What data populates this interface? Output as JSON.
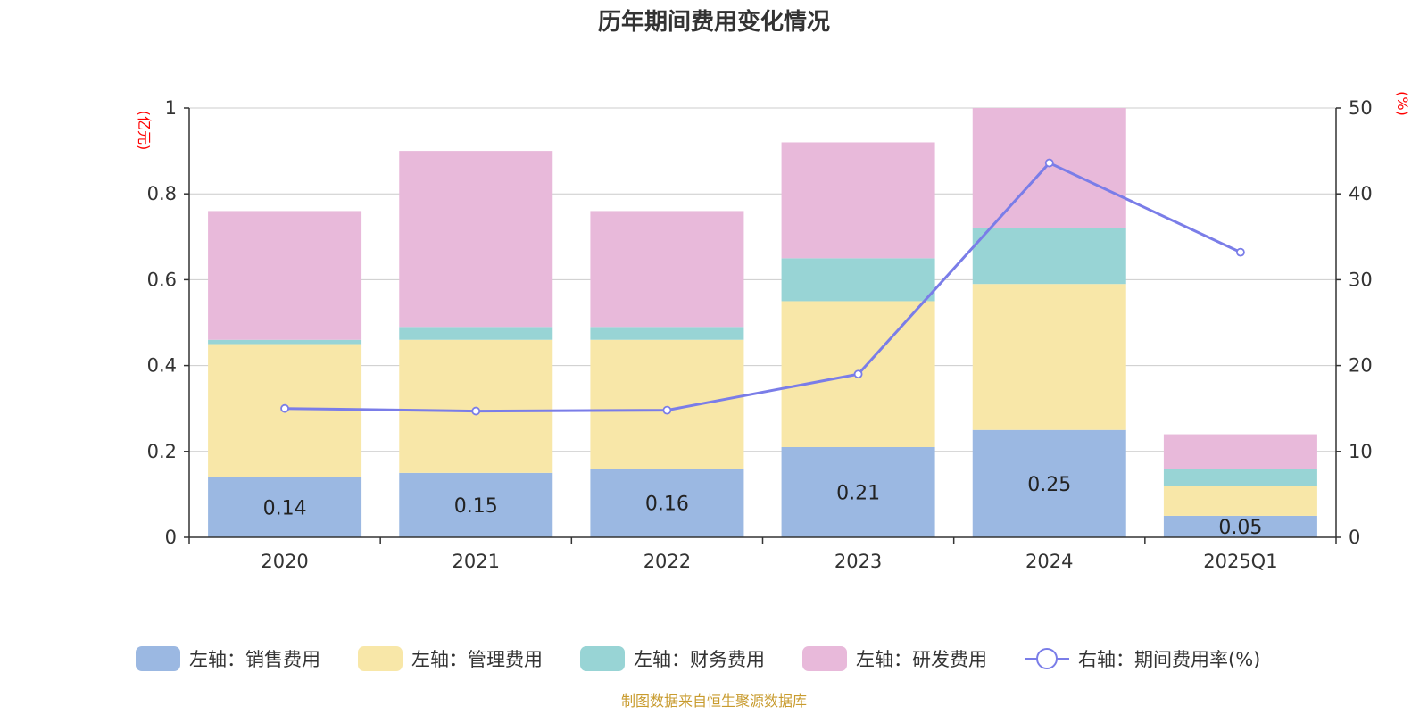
{
  "chart_data": {
    "type": "bar",
    "stacked": true,
    "title": "历年期间费用变化情况",
    "categories": [
      "2020",
      "2021",
      "2022",
      "2023",
      "2024",
      "2025Q1"
    ],
    "left_axis_unit": "(亿元)",
    "right_axis_unit": "(%)",
    "ylim_left": [
      0,
      1
    ],
    "yticks_left": [
      "0",
      "0.2",
      "0.4",
      "0.6",
      "0.8",
      "1"
    ],
    "ylim_right": [
      0,
      50
    ],
    "yticks_right": [
      "0",
      "10",
      "20",
      "30",
      "40",
      "50"
    ],
    "grid": true,
    "legend_position": "bottom",
    "series": [
      {
        "name": "左轴：销售费用",
        "axis": "left",
        "color": "#9bb8e2",
        "values": [
          0.14,
          0.15,
          0.16,
          0.21,
          0.25,
          0.05
        ],
        "labels": [
          "0.14",
          "0.15",
          "0.16",
          "0.21",
          "0.25",
          "0.05"
        ]
      },
      {
        "name": "左轴：管理费用",
        "axis": "left",
        "color": "#f8e7a8",
        "values": [
          0.31,
          0.31,
          0.3,
          0.34,
          0.34,
          0.07
        ]
      },
      {
        "name": "左轴：财务费用",
        "axis": "left",
        "color": "#98d4d5",
        "values": [
          0.01,
          0.03,
          0.03,
          0.1,
          0.13,
          0.04
        ]
      },
      {
        "name": "左轴：研发费用",
        "axis": "left",
        "color": "#e8b9da",
        "values": [
          0.3,
          0.41,
          0.27,
          0.27,
          0.28,
          0.08
        ]
      },
      {
        "name": "右轴：期间费用率(%)",
        "axis": "right",
        "type": "line",
        "color": "#7a7de8",
        "values": [
          15.0,
          14.7,
          14.8,
          19.0,
          43.6,
          33.2
        ]
      }
    ],
    "source": "制图数据来自恒生聚源数据库"
  }
}
